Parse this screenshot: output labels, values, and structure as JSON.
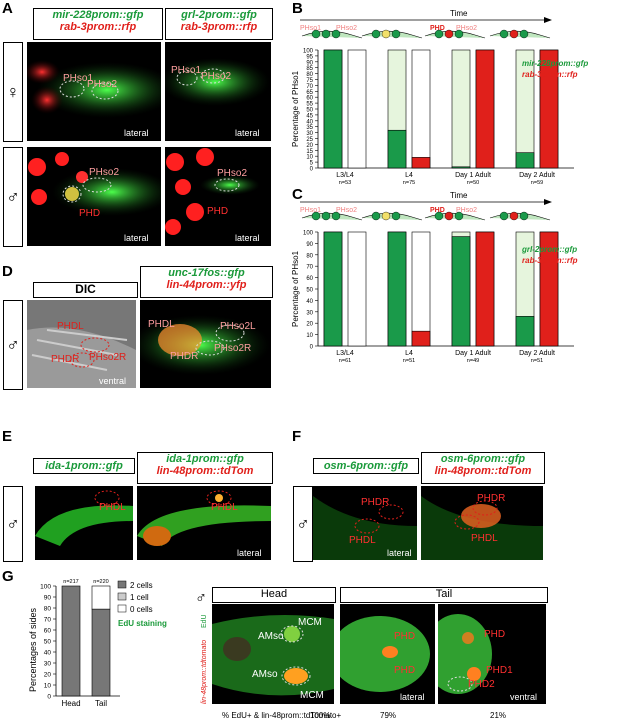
{
  "panel_letters": {
    "A": "A",
    "B": "B",
    "C": "C",
    "D": "D",
    "E": "E",
    "F": "F",
    "G": "G"
  },
  "A": {
    "col1_line1": "mir-228prom::gfp",
    "col1_line2": "rab-3prom::rfp",
    "col2_line1": "grl-2prom::gfp",
    "col2_line2": "rab-3prom::rfp",
    "sex_top": "♀",
    "sex_bottom": "♂",
    "labels": {
      "phso1": "PHso1",
      "phso2": "PHso2",
      "phd": "PHD",
      "lateral": "lateral"
    }
  },
  "B": {
    "time": "Time",
    "stage_labels": [
      "PHso1",
      "PHso2",
      "PHD",
      "PHso2"
    ],
    "legend1": "mir-228prom::gfp",
    "legend2": "rab-3prom::rfp"
  },
  "C": {
    "time": "Time",
    "stage_labels": [
      "PHso1",
      "PHso2",
      "PHD",
      "PHso2"
    ],
    "legend1": "grl-2prom::gfp",
    "legend2": "rab-3prom::rfp"
  },
  "D": {
    "dic": "DIC",
    "hdr_line1": "unc-17fos::gfp",
    "hdr_line2": "lin-44prom::yfp",
    "sex": "♂",
    "labels": {
      "phdl": "PHDL",
      "phdr": "PHDR",
      "phso2r": "PHso2R",
      "phso2l": "PHso2L",
      "ventral": "ventral"
    }
  },
  "E": {
    "hdr1": "ida-1prom::gfp",
    "hdr2_line1": "ida-1prom::gfp",
    "hdr2_line2": "lin-48prom::tdTom",
    "sex": "♂",
    "labels": {
      "phdl": "PHDL",
      "lateral": "lateral"
    }
  },
  "F": {
    "hdr1": "osm-6prom::gfp",
    "hdr2_line1": "osm-6prom::gfp",
    "hdr2_line2": "lin-48prom::tdTom",
    "sex": "♂",
    "labels": {
      "phdr": "PHDR",
      "phdl": "PHDL",
      "lateral": "lateral"
    }
  },
  "G": {
    "legend": [
      "2 cells",
      "1 cell",
      "0 cells"
    ],
    "edu": "EdU staining",
    "ylabel": "Percentages of sides",
    "head": "Head",
    "tail": "Tail",
    "sex": "♂",
    "side_label_1": "lin-48prom::tdtomato",
    "side_label_2": "EdU",
    "img_labels": {
      "amso": "AMso",
      "mcm": "MCM",
      "phd": "PHD",
      "phd1": "PHD1",
      "phd2": "PHD2",
      "lateral": "lateral",
      "ventral": "ventral"
    },
    "footer": "% EdU+ & lin-48prom::tdTomato+",
    "pcts": [
      "100%",
      "79%",
      "21%"
    ]
  },
  "chart_data": [
    {
      "type": "bar",
      "panel": "B",
      "ylabel": "Percentage of PHso1",
      "ylim": [
        0,
        100
      ],
      "yticks": [
        0,
        5,
        10,
        15,
        20,
        25,
        30,
        35,
        40,
        45,
        50,
        55,
        60,
        65,
        70,
        75,
        80,
        85,
        90,
        95,
        100
      ],
      "categories": [
        "L3/L4",
        "L4",
        "Day 1 Adult",
        "Day 2 Adult"
      ],
      "n": [
        "n=53",
        "n=75",
        "n=50",
        "n=59"
      ],
      "series": [
        {
          "name": "mir-228prom::gfp",
          "values": [
            100,
            32,
            1,
            13
          ],
          "color": "#1a9a4a"
        },
        {
          "name": "rab-3prom::rfp",
          "values": [
            0,
            9,
            100,
            100
          ],
          "color": "#e0201b"
        }
      ]
    },
    {
      "type": "bar",
      "panel": "C",
      "ylabel": "Percentage of PHso1",
      "ylim": [
        0,
        100
      ],
      "yticks": [
        0,
        10,
        20,
        30,
        40,
        50,
        60,
        70,
        80,
        90,
        100
      ],
      "categories": [
        "L3/L4",
        "L4",
        "Day 1 Adult",
        "Day 2 Adult"
      ],
      "n": [
        "n=61",
        "n=51",
        "n=49",
        "n=51"
      ],
      "series": [
        {
          "name": "grl-2prom::gfp",
          "values": [
            100,
            100,
            96,
            26
          ],
          "color": "#1a9a4a"
        },
        {
          "name": "rab-3prom::rfp",
          "values": [
            0,
            13,
            100,
            100
          ],
          "color": "#e0201b"
        }
      ]
    },
    {
      "type": "bar",
      "panel": "G",
      "ylabel": "Percentages of sides",
      "ylim": [
        0,
        100
      ],
      "yticks": [
        0,
        10,
        20,
        30,
        40,
        50,
        60,
        70,
        80,
        90,
        100
      ],
      "categories": [
        "Head",
        "Tail"
      ],
      "n": [
        "n=217",
        "n=220"
      ],
      "series": [
        {
          "name": "2 cells",
          "values": [
            100,
            79
          ],
          "color": "#777777"
        },
        {
          "name": "1 cell",
          "values": [
            0,
            0
          ],
          "color": "#cccccc"
        },
        {
          "name": "0 cells",
          "values": [
            0,
            21
          ],
          "color": "#ffffff"
        }
      ]
    }
  ]
}
